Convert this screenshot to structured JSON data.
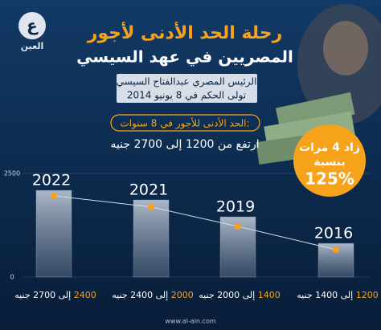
{
  "chart_data": {
    "type": "bar",
    "logo_mark": "ع",
    "logo": "العين",
    "title": "رحلة الحد الأدنى لأجور",
    "title_line2": "المصريين في عهد السيسي",
    "subtitle": [
      "الرئيس المصري عبدالفتاح السيسي",
      "تولى الحكم في 8 يونيو 2014"
    ],
    "box_title": "الحد الأدنى للأجور في 8 سنوات:",
    "box_text": "ارتفع من 1200 إلى 2700 جنيه",
    "badge": [
      "زاد 4 مرات",
      "بنسبة",
      "125%"
    ],
    "categories": [
      "2022",
      "2021",
      "2019",
      "2016"
    ],
    "series": [
      {
        "color": "#aab6c8",
        "values": [
          2090,
          1860,
          1450,
          810
        ]
      },
      {
        "color": "#f7a21b",
        "values": [
          1960,
          1690,
          1220,
          660
        ]
      }
    ],
    "range_labels": [
      {
        "from": "2400",
        "rest": "إلى 2700 جنيه"
      },
      {
        "from": "2000",
        "rest": "إلى 2400 جنيه"
      },
      {
        "from": "1400",
        "rest": "إلى 2000 جنيه"
      },
      {
        "from": "1200",
        "rest": "إلى 1400 جنيه"
      }
    ],
    "ylim": [
      0,
      2500
    ],
    "yticks": [
      0,
      2500
    ],
    "footer": "www.al-ain.com"
  }
}
